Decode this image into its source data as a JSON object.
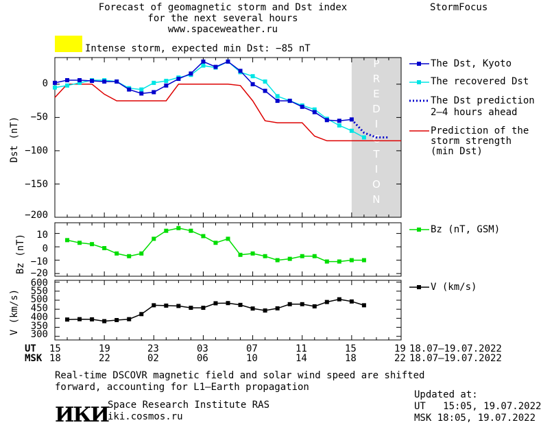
{
  "header": {
    "title_lines": [
      "Forecast of geomagnetic storm and Dst index",
      "for the next several hours",
      "www.spaceweather.ru"
    ],
    "brand": "StormFocus",
    "alert_text": "Intense storm, expected min Dst: −85 nT",
    "alert_color": "#ffff00"
  },
  "legend": {
    "dst_kyoto": "The Dst, Kyoto",
    "recovered": "The recovered Dst",
    "prediction": [
      "The Dst prediction",
      "2–4 hours ahead"
    ],
    "strength": [
      "Prediction of the",
      "storm strength",
      "(min Dst)"
    ],
    "bz": "Bz (nT, GSM)",
    "v": "V (km/s)"
  },
  "prediction_band_label": "PREDICTION",
  "axes": {
    "dst_label": "Dst (nT)",
    "bz_label": "Bz (nT)",
    "v_label": "V (km/s)",
    "dst_ticks": [
      "0",
      "−50",
      "−100",
      "−150",
      "−200"
    ],
    "bz_ticks": [
      "10",
      "0",
      "−10",
      "−20"
    ],
    "v_ticks": [
      "600",
      "550",
      "500",
      "450",
      "400",
      "350",
      "300"
    ],
    "ut_label": "UT",
    "msk_label": "MSK",
    "ut_ticks": [
      "15",
      "19",
      "23",
      "03",
      "07",
      "11",
      "15",
      "19"
    ],
    "msk_ticks": [
      "18",
      "22",
      "02",
      "06",
      "10",
      "14",
      "18",
      "22"
    ],
    "ut_range": "18.07–19.07.2022",
    "msk_range": "18.07–19.07.2022"
  },
  "footer": {
    "note_lines": [
      "Real-time DSCOVR magnetic field and solar wind speed are shifted",
      "forward, accounting for L1–Earth propagation"
    ],
    "institute": "Space Research Institute RAS",
    "site": "iki.cosmos.ru",
    "logo_text": "ИКИ",
    "updated_label": "Updated at:",
    "updated_ut": "UT   15:05, 19.07.2022",
    "updated_msk": "MSK 18:05, 19.07.2022"
  },
  "colors": {
    "dst_kyoto": "#0000cc",
    "recovered": "#00e5e5",
    "prediction": "#0000cc",
    "strength": "#dd0000",
    "bz": "#00dd00",
    "v": "#000000",
    "band": "#d9d9d9"
  },
  "chart_data": [
    {
      "type": "line",
      "panel": "Dst",
      "xlabel": "UT / MSK (hours)",
      "ylabel": "Dst (nT)",
      "x_unit": "hours since 15 UT 18.07.2022",
      "xlim": [
        0,
        28
      ],
      "ylim": [
        -200,
        40
      ],
      "prediction_band": [
        24,
        28
      ],
      "series": [
        {
          "name": "The Dst, Kyoto",
          "x": [
            0,
            1,
            2,
            3,
            4,
            5,
            6,
            7,
            8,
            9,
            10,
            11,
            12,
            13,
            14,
            15,
            16,
            17,
            18,
            19,
            20,
            21,
            22,
            23,
            24
          ],
          "y": [
            2,
            6,
            6,
            5,
            4,
            4,
            -8,
            -14,
            -12,
            -2,
            8,
            16,
            34,
            26,
            34,
            20,
            0,
            -10,
            -25,
            -25,
            -34,
            -42,
            -54,
            -55,
            -53
          ]
        },
        {
          "name": "The recovered Dst",
          "x": [
            0,
            1,
            2,
            3,
            4,
            5,
            6,
            7,
            8,
            9,
            10,
            11,
            12,
            13,
            14,
            15,
            16,
            17,
            18,
            19,
            20,
            21,
            22,
            23,
            24,
            25
          ],
          "y": [
            -5,
            -2,
            2,
            6,
            6,
            4,
            -6,
            -8,
            2,
            5,
            10,
            14,
            28,
            25,
            34,
            18,
            12,
            4,
            -18,
            -25,
            -32,
            -38,
            -52,
            -62,
            -70,
            -80
          ]
        },
        {
          "name": "The Dst prediction 2–4 hours ahead",
          "x": [
            24,
            24.5,
            25,
            26,
            27
          ],
          "y": [
            -53,
            -63,
            -73,
            -80,
            -80
          ]
        },
        {
          "name": "Prediction of the storm strength (min Dst)",
          "x": [
            0,
            1,
            3,
            4,
            5,
            9,
            10,
            14,
            15,
            16,
            17,
            18,
            20,
            21,
            22,
            28
          ],
          "y": [
            -20,
            0,
            0,
            -15,
            -25,
            -25,
            0,
            0,
            -2,
            -25,
            -55,
            -58,
            -58,
            -78,
            -85,
            -85
          ]
        }
      ]
    },
    {
      "type": "line",
      "panel": "Bz",
      "ylabel": "Bz (nT)",
      "xlim": [
        0,
        28
      ],
      "ylim": [
        -22,
        18
      ],
      "series": [
        {
          "name": "Bz (nT, GSM)",
          "x": [
            1,
            2,
            3,
            4,
            5,
            6,
            7,
            8,
            9,
            10,
            11,
            12,
            13,
            14,
            15,
            16,
            17,
            18,
            19,
            20,
            21,
            22,
            23,
            24,
            25
          ],
          "y": [
            5,
            3,
            2,
            -1,
            -5,
            -7,
            -5,
            6,
            12,
            14,
            12,
            8,
            3,
            6,
            -6,
            -5,
            -7,
            -10,
            -9,
            -7,
            -7,
            -11,
            -11,
            -10,
            -10
          ]
        }
      ]
    },
    {
      "type": "line",
      "panel": "V",
      "ylabel": "V (km/s)",
      "xlim": [
        0,
        28
      ],
      "ylim": [
        280,
        610
      ],
      "series": [
        {
          "name": "V (km/s)",
          "x": [
            1,
            2,
            3,
            4,
            5,
            6,
            7,
            8,
            9,
            10,
            11,
            12,
            13,
            14,
            15,
            16,
            17,
            18,
            19,
            20,
            21,
            22,
            23,
            24,
            25
          ],
          "y": [
            393,
            395,
            394,
            384,
            390,
            395,
            423,
            472,
            470,
            468,
            458,
            458,
            483,
            484,
            474,
            454,
            443,
            455,
            478,
            478,
            466,
            490,
            505,
            493,
            472
          ]
        }
      ]
    }
  ]
}
